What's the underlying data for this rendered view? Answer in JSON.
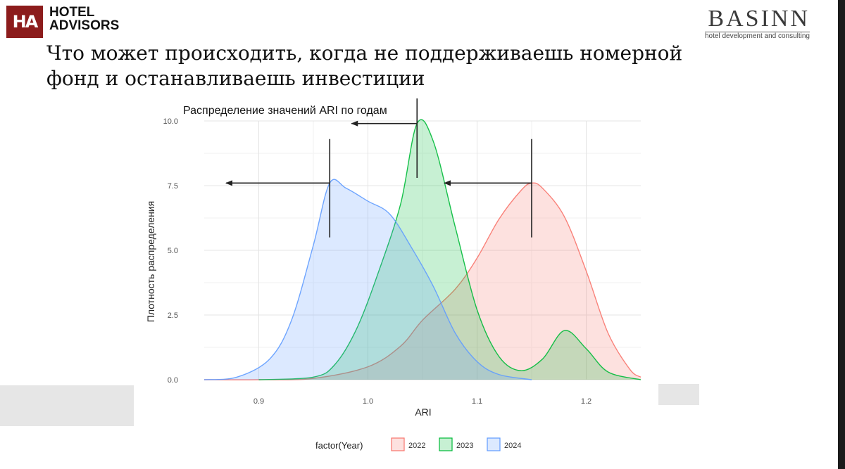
{
  "header": {
    "logo_left_mark": "HA",
    "logo_left_line1": "HOTEL",
    "logo_left_line2": "ADVISORS",
    "logo_right_word": "BASINN",
    "logo_right_sub": "hotel development and consulting"
  },
  "slide": {
    "title_line1": "Что может происходить, когда не поддерживаешь номерной",
    "title_line2": "фонд и останавливаешь инвестиции"
  },
  "colors": {
    "y2022": "#f8766d",
    "y2023": "#00ba38",
    "y2024": "#619cff"
  },
  "chart_data": {
    "type": "area",
    "title": "Распределение значений ARI по годам",
    "xlabel": "ARI",
    "ylabel": "Плотность распределения",
    "xlim": [
      0.85,
      1.25
    ],
    "ylim": [
      0,
      10
    ],
    "x_ticks": [
      0.9,
      1.0,
      1.1,
      1.2
    ],
    "x_tick_labels": [
      "0.9",
      "1.0",
      "1.1",
      "1.2"
    ],
    "y_ticks": [
      0,
      2.5,
      5,
      7.5,
      10
    ],
    "y_tick_labels": [
      "0.0",
      "2.5",
      "5.0",
      "7.5",
      "10.0"
    ],
    "grid": true,
    "legend_title": "factor(Year)",
    "legend_position": "bottom",
    "series": [
      {
        "name": "2022",
        "points": [
          [
            0.85,
            0
          ],
          [
            0.9,
            0
          ],
          [
            0.95,
            0.05
          ],
          [
            1.0,
            0.5
          ],
          [
            1.03,
            1.3
          ],
          [
            1.05,
            2.3
          ],
          [
            1.08,
            3.5
          ],
          [
            1.1,
            4.7
          ],
          [
            1.12,
            6.2
          ],
          [
            1.14,
            7.3
          ],
          [
            1.15,
            7.6
          ],
          [
            1.16,
            7.4
          ],
          [
            1.18,
            6.3
          ],
          [
            1.2,
            4.2
          ],
          [
            1.22,
            1.8
          ],
          [
            1.24,
            0.4
          ],
          [
            1.25,
            0.1
          ]
        ]
      },
      {
        "name": "2023",
        "points": [
          [
            0.9,
            0
          ],
          [
            0.95,
            0.1
          ],
          [
            0.97,
            0.6
          ],
          [
            0.99,
            2.0
          ],
          [
            1.01,
            4.2
          ],
          [
            1.03,
            6.8
          ],
          [
            1.045,
            9.9
          ],
          [
            1.06,
            9.2
          ],
          [
            1.08,
            5.9
          ],
          [
            1.1,
            2.7
          ],
          [
            1.12,
            0.9
          ],
          [
            1.14,
            0.35
          ],
          [
            1.16,
            0.8
          ],
          [
            1.18,
            1.9
          ],
          [
            1.2,
            1.2
          ],
          [
            1.22,
            0.3
          ],
          [
            1.25,
            0
          ]
        ]
      },
      {
        "name": "2024",
        "points": [
          [
            0.85,
            0
          ],
          [
            0.88,
            0.1
          ],
          [
            0.91,
            0.8
          ],
          [
            0.93,
            2.3
          ],
          [
            0.95,
            5.2
          ],
          [
            0.965,
            7.6
          ],
          [
            0.98,
            7.4
          ],
          [
            1.0,
            6.9
          ],
          [
            1.02,
            6.4
          ],
          [
            1.04,
            5.1
          ],
          [
            1.06,
            3.6
          ],
          [
            1.08,
            1.8
          ],
          [
            1.1,
            0.7
          ],
          [
            1.12,
            0.2
          ],
          [
            1.15,
            0
          ]
        ]
      }
    ],
    "annotations": [
      {
        "x": 0.965,
        "y": 7.6,
        "arrow_to_x": 0.87
      },
      {
        "x": 1.045,
        "y": 9.9,
        "arrow_to_x": 0.985
      },
      {
        "x": 1.15,
        "y": 7.6,
        "arrow_to_x": 1.07
      }
    ]
  }
}
